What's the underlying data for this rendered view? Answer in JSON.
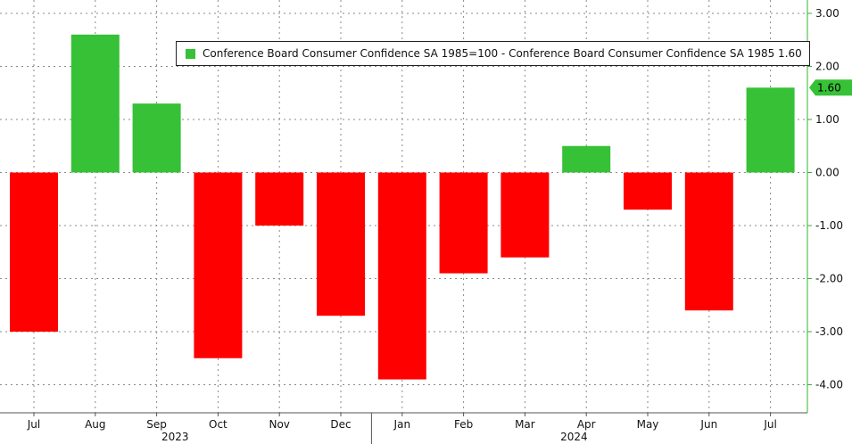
{
  "chart_data": {
    "type": "bar",
    "series": [
      {
        "name": "Conference Board Consumer Confidence SA 1985=100 - Conference Board Consumer Confidence SA 1985",
        "last_value_label": "1.60",
        "legend_label": "Conference Board Consumer Confidence SA 1985=100 - Conference Board Consumer Confidence SA 1985  1.60",
        "categories": [
          "Jul",
          "Aug",
          "Sep",
          "Oct",
          "Nov",
          "Dec",
          "Jan",
          "Feb",
          "Mar",
          "Apr",
          "May",
          "Jun",
          "Jul"
        ],
        "values": [
          -3.0,
          2.6,
          1.3,
          -3.5,
          -1.0,
          -2.7,
          -3.9,
          -1.9,
          -1.6,
          0.5,
          -0.7,
          -2.6,
          1.6
        ]
      }
    ],
    "year_labels": [
      "2023",
      "2024"
    ],
    "y_axis": {
      "position": "right",
      "ticks": [
        "3.00",
        "2.00",
        "1.00",
        "0.00",
        "-1.00",
        "-2.00",
        "-3.00",
        "-4.00"
      ],
      "ylim": [
        -4.5,
        3.25
      ]
    },
    "grid": true,
    "legend_position": "top-center",
    "colors": {
      "positive": "#36c136",
      "negative": "#ff0000",
      "axis": "#2db52d",
      "value_tag": "#36c136"
    }
  }
}
